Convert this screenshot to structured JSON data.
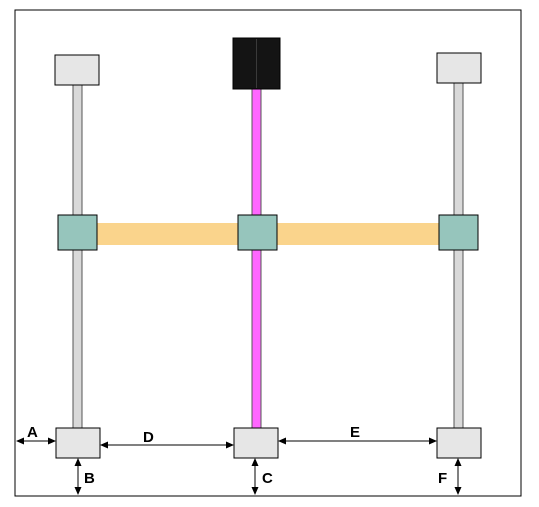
{
  "diagram": {
    "dimension_labels": {
      "a": "A",
      "b": "B",
      "c": "C",
      "d": "D",
      "e": "E",
      "f": "F"
    },
    "colors": {
      "frame": "#000000",
      "side_rail": "#d9d9d9",
      "center_rail": "#ff66ff",
      "crossbar": "#fad48c",
      "carriage_block": "#96c5bc",
      "end_block": "#e6e6e6",
      "motor_block": "#141414"
    }
  }
}
